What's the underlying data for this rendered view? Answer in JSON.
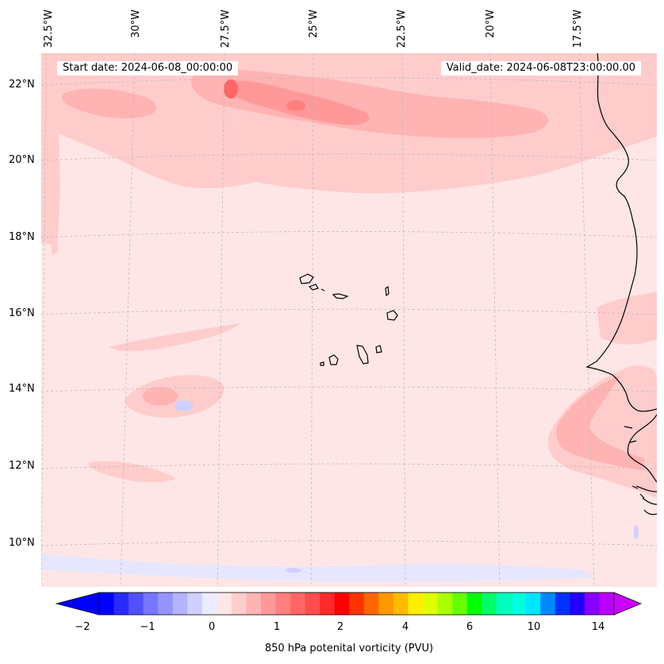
{
  "map": {
    "start_label": "Start date: 2024-06-08_00:00:00",
    "valid_label": "Valid_date: 2024-06-08T23:00:00.00",
    "lon_ticks": [
      "32.5°W",
      "30°W",
      "27.5°W",
      "25°W",
      "22.5°W",
      "20°W",
      "17.5°W"
    ],
    "lat_ticks": [
      "22°N",
      "20°N",
      "18°N",
      "16°N",
      "14°N",
      "12°N",
      "10°N"
    ],
    "colors": {
      "background_field": "#ffe6e6",
      "light_pink": "#ffcccc",
      "pink": "#ffb3b3",
      "rose": "#ff9999",
      "red_core": "#ff6666",
      "pale_blue": "#e6e6ff",
      "lavender": "#cfd0ff",
      "coastline": "#000000"
    }
  },
  "colorbar": {
    "title": "850 hPa potenital vorticity (PVU)",
    "tick_labels": [
      "−2",
      "−1",
      "0",
      "1",
      "2",
      "4",
      "6",
      "10",
      "14"
    ],
    "colors": [
      "#0000ff",
      "#2a2aff",
      "#5050ff",
      "#7676ff",
      "#9494ff",
      "#b3b3ff",
      "#d0d0ff",
      "#ececff",
      "#ffe6e6",
      "#ffcccc",
      "#ffb3b3",
      "#ff9999",
      "#ff7f7f",
      "#ff6666",
      "#ff4c4c",
      "#ff2a2a",
      "#ff0000",
      "#ff3300",
      "#ff6600",
      "#ff9900",
      "#ffbb00",
      "#ffee00",
      "#ddff00",
      "#aaff00",
      "#66ff00",
      "#00ff00",
      "#00ff66",
      "#00ffbb",
      "#00ffdd",
      "#00e5ff",
      "#0088ff",
      "#0033ff",
      "#2200ff",
      "#8800ff",
      "#bb00ff"
    ],
    "extend_low": "#0000ff",
    "extend_high": "#cc00ff"
  }
}
